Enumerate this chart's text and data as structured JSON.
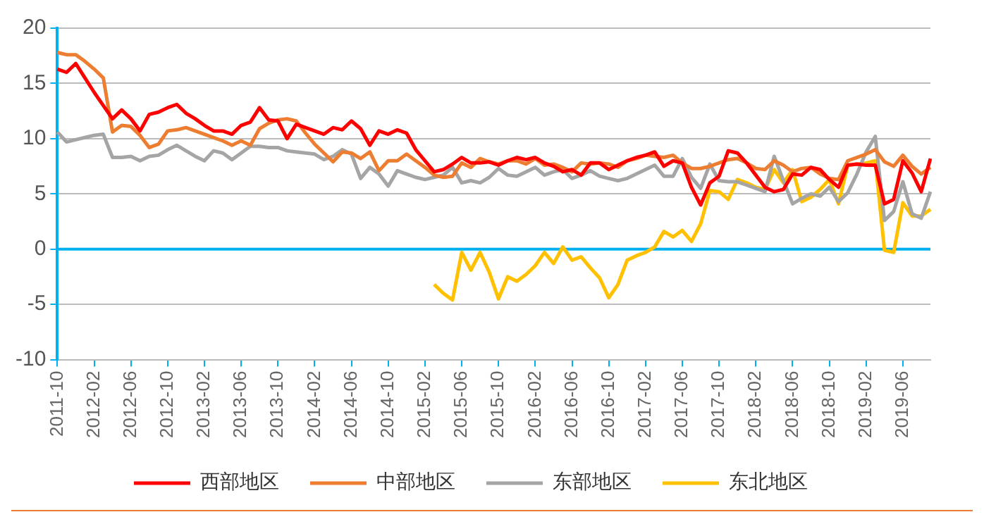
{
  "chart_data": {
    "type": "line",
    "categories": [
      "2011-10",
      null,
      null,
      null,
      "2012-02",
      null,
      null,
      null,
      "2012-06",
      null,
      null,
      null,
      "2012-10",
      null,
      null,
      null,
      "2013-02",
      null,
      null,
      null,
      "2013-06",
      null,
      null,
      null,
      "2013-10",
      null,
      null,
      null,
      "2014-02",
      null,
      null,
      null,
      "2014-06",
      null,
      null,
      null,
      "2014-10",
      null,
      null,
      null,
      "2015-02",
      null,
      null,
      null,
      "2015-06",
      null,
      null,
      null,
      "2015-10",
      null,
      null,
      null,
      "2016-02",
      null,
      null,
      null,
      "2016-06",
      null,
      null,
      null,
      "2016-10",
      null,
      null,
      null,
      "2017-02",
      null,
      null,
      null,
      "2017-06",
      null,
      null,
      null,
      "2017-10",
      null,
      null,
      null,
      "2018-02",
      null,
      null,
      null,
      "2018-06",
      null,
      null,
      null,
      "2018-10",
      null,
      null,
      null,
      "2019-02",
      null,
      null,
      null,
      "2019-06",
      null,
      null,
      null
    ],
    "series": [
      {
        "name": "西部地区",
        "color": "#ff0000",
        "values": [
          16.3,
          16.0,
          16.8,
          15.5,
          14.2,
          13.0,
          11.8,
          12.6,
          11.8,
          10.7,
          12.2,
          12.4,
          12.8,
          13.1,
          12.3,
          11.8,
          11.2,
          10.7,
          10.7,
          10.4,
          11.2,
          11.5,
          12.8,
          11.7,
          11.6,
          10.0,
          11.3,
          11.0,
          10.7,
          10.4,
          11.0,
          10.8,
          11.6,
          10.9,
          9.4,
          10.7,
          10.4,
          10.8,
          10.5,
          9.0,
          8.0,
          7.0,
          7.2,
          7.7,
          8.3,
          7.8,
          7.8,
          7.9,
          7.6,
          8.0,
          8.3,
          8.1,
          8.3,
          7.8,
          7.5,
          7.0,
          7.2,
          6.7,
          7.8,
          7.8,
          7.2,
          7.6,
          8.0,
          8.3,
          8.5,
          8.8,
          7.5,
          8.0,
          7.8,
          5.6,
          4.0,
          6.0,
          6.6,
          8.9,
          8.7,
          7.8,
          6.7,
          5.6,
          5.2,
          5.4,
          6.8,
          6.7,
          7.4,
          7.2,
          6.3,
          5.6,
          7.6,
          7.7,
          7.6,
          7.6,
          4.1,
          4.5,
          8.0,
          6.9,
          5.2,
          8.2
        ]
      },
      {
        "name": "中部地区",
        "color": "#ed7d31",
        "values": [
          17.8,
          17.6,
          17.6,
          17.0,
          16.3,
          15.5,
          10.6,
          11.2,
          11.1,
          10.3,
          9.2,
          9.5,
          10.7,
          10.8,
          11.0,
          10.7,
          10.4,
          10.1,
          9.8,
          9.4,
          9.8,
          9.4,
          10.9,
          11.4,
          11.7,
          11.8,
          11.6,
          10.5,
          9.5,
          8.7,
          7.9,
          8.8,
          8.7,
          8.2,
          8.8,
          7.1,
          8.0,
          8.0,
          8.6,
          8.0,
          7.4,
          6.7,
          6.5,
          6.6,
          7.8,
          7.4,
          8.2,
          7.9,
          7.7,
          8.0,
          8.0,
          7.7,
          8.2,
          7.6,
          7.7,
          7.4,
          7.0,
          7.8,
          7.7,
          7.8,
          7.7,
          7.4,
          8.0,
          8.2,
          8.5,
          8.4,
          8.3,
          8.5,
          7.8,
          7.3,
          7.3,
          7.5,
          7.8,
          8.1,
          8.2,
          7.8,
          7.3,
          7.2,
          8.0,
          7.6,
          7.0,
          7.3,
          7.4,
          6.8,
          6.4,
          6.3,
          8.0,
          8.3,
          8.6,
          9.0,
          7.9,
          7.5,
          8.5,
          7.5,
          6.8,
          7.4
        ]
      },
      {
        "name": "东部地区",
        "color": "#a5a5a5",
        "values": [
          10.6,
          9.7,
          9.9,
          10.1,
          10.3,
          10.4,
          8.3,
          8.3,
          8.4,
          8.0,
          8.4,
          8.5,
          9.0,
          9.4,
          8.9,
          8.4,
          8.0,
          8.9,
          8.7,
          8.1,
          8.7,
          9.3,
          9.3,
          9.2,
          9.2,
          8.9,
          8.8,
          8.7,
          8.6,
          8.1,
          8.4,
          9.0,
          8.6,
          6.4,
          7.4,
          6.8,
          5.7,
          7.1,
          6.8,
          6.5,
          6.3,
          6.5,
          6.7,
          7.4,
          6.0,
          6.2,
          6.0,
          6.5,
          7.3,
          6.7,
          6.6,
          7.0,
          7.4,
          6.7,
          7.0,
          7.2,
          6.4,
          6.7,
          7.1,
          6.6,
          6.4,
          6.2,
          6.4,
          6.8,
          7.2,
          7.6,
          6.6,
          6.6,
          8.2,
          6.5,
          5.5,
          7.7,
          6.2,
          6.1,
          6.1,
          5.8,
          5.5,
          5.2,
          8.4,
          6.2,
          4.1,
          4.6,
          5.0,
          4.8,
          5.6,
          4.3,
          5.1,
          6.8,
          8.8,
          10.2,
          2.6,
          3.4,
          6.1,
          3.2,
          2.8,
          5.2
        ]
      },
      {
        "name": "东北地区",
        "color": "#ffc000",
        "values": [
          null,
          null,
          null,
          null,
          null,
          null,
          null,
          null,
          null,
          null,
          null,
          null,
          null,
          null,
          null,
          null,
          null,
          null,
          null,
          null,
          null,
          null,
          null,
          null,
          null,
          null,
          null,
          null,
          null,
          null,
          null,
          null,
          null,
          null,
          null,
          null,
          null,
          null,
          null,
          null,
          null,
          -3.2,
          -4.0,
          -4.6,
          -0.3,
          -1.9,
          -0.3,
          -2.1,
          -4.5,
          -2.5,
          -2.9,
          -2.3,
          -1.5,
          -0.3,
          -1.3,
          0.2,
          -1.0,
          -0.7,
          -1.7,
          -2.6,
          -4.4,
          -3.2,
          -1.0,
          -0.6,
          -0.3,
          0.2,
          1.6,
          1.1,
          1.7,
          0.7,
          2.3,
          5.3,
          5.2,
          4.5,
          6.3,
          6.0,
          5.6,
          5.4,
          7.2,
          6.0,
          7.2,
          4.3,
          4.7,
          5.4,
          6.3,
          4.1,
          7.6,
          7.7,
          7.8,
          8.0,
          -0.1,
          -0.3,
          4.2,
          3.0,
          3.0,
          3.6
        ]
      }
    ],
    "ylim": [
      -10,
      20
    ],
    "yticks": [
      20,
      15,
      10,
      5,
      0,
      -5,
      -10
    ],
    "ref_lines": [
      {
        "axis": "y",
        "value": 0,
        "color": "#00b0f0"
      }
    ],
    "grid": "y",
    "legend": "bottom",
    "marker": "none",
    "line_style": "solid"
  }
}
